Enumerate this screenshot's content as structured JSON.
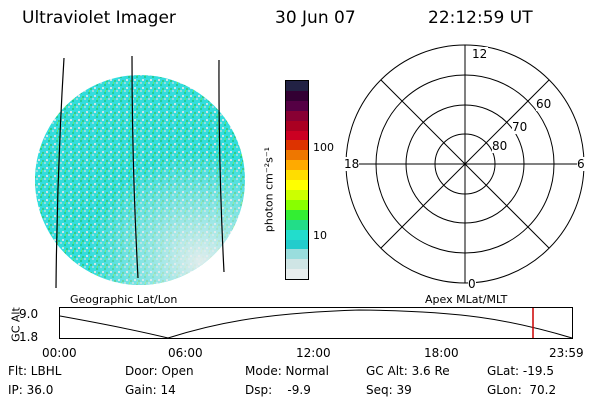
{
  "header": {
    "instrument": "Ultraviolet Imager",
    "date": "30 Jun 07",
    "time": "22:12:59 UT"
  },
  "colorbar": {
    "unit_label": "photon cm⁻²s⁻¹",
    "tick_labels": [
      "100",
      "10"
    ],
    "colors": [
      "#222244",
      "#330033",
      "#550044",
      "#880033",
      "#aa0022",
      "#cc0022",
      "#dd3300",
      "#ee7700",
      "#ffaa00",
      "#ffdd00",
      "#ffff00",
      "#ccff00",
      "#88ff00",
      "#33ee33",
      "#22dd88",
      "#22ddcc",
      "#22cccc",
      "#99dddd",
      "#cfe5e5",
      "#e8eeee"
    ]
  },
  "polar": {
    "labels_lat": [
      "80",
      "70",
      "60"
    ],
    "labels_mlt": {
      "top": "12",
      "left": "18",
      "right": "6",
      "bottom": "0"
    }
  },
  "orbit": {
    "left_caption": "Geographic Lat/Lon",
    "right_caption": "Apex MLat/MLT",
    "axis_title": "GC Alt",
    "y_ticks": [
      "9.0",
      "1.8"
    ],
    "x_ticks": [
      "00:00",
      "06:00",
      "12:00",
      "18:00",
      "23:59"
    ],
    "marker_color": "#cc0000"
  },
  "footer": {
    "filter": "Flt: LBHL",
    "door": "Door: Open",
    "mode": "Mode: Normal",
    "gc_alt": "GC Alt: 3.6 Re",
    "glat": "GLat: -19.5",
    "ip": "IP: 36.0",
    "gain": "Gain: 14",
    "dsp": "Dsp:    -9.9",
    "seq": "Seq: 39",
    "glon": "GLon:  70.2"
  }
}
